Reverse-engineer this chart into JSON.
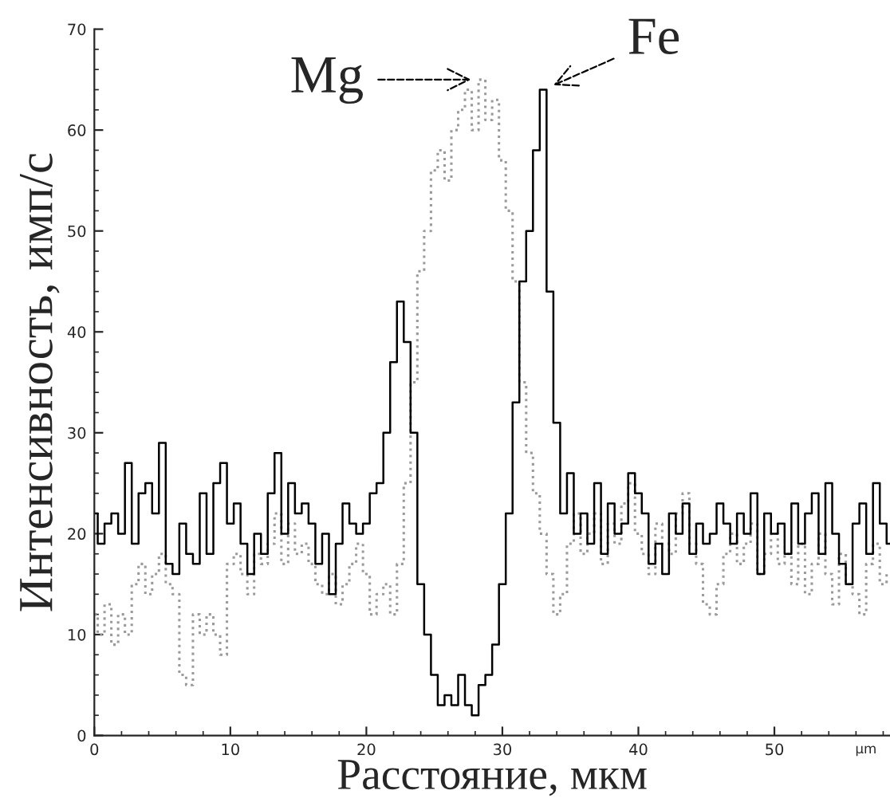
{
  "chart_data": {
    "type": "step",
    "xlabel": "Расстояние, мкм",
    "ylabel": "Интенсивность, имп/с",
    "annotations": [
      "µm"
    ],
    "x": [
      0,
      0.5,
      1,
      1.5,
      2,
      2.5,
      3,
      3.5,
      4,
      4.5,
      5,
      5.5,
      6,
      6.5,
      7,
      7.5,
      8,
      8.5,
      9,
      9.5,
      10,
      10.5,
      11,
      11.5,
      12,
      12.5,
      13,
      13.5,
      14,
      14.5,
      15,
      15.5,
      16,
      16.5,
      17,
      17.5,
      18,
      18.5,
      19,
      19.5,
      20,
      20.5,
      21,
      21.5,
      22,
      22.5,
      23,
      23.5,
      24,
      24.5,
      25,
      25.5,
      26,
      26.5,
      27,
      27.5,
      28,
      28.5,
      29,
      29.5,
      30,
      30.5,
      31,
      31.5,
      32,
      32.5,
      33,
      33.5,
      34,
      34.5,
      35,
      35.5,
      36,
      36.5,
      37,
      37.5,
      38,
      38.5,
      39,
      39.5,
      40,
      40.5,
      41,
      41.5,
      42,
      42.5,
      43,
      43.5,
      44,
      44.5,
      45,
      45.5,
      46,
      46.5,
      47,
      47.5,
      48,
      48.5,
      49,
      49.5,
      50,
      50.5,
      51,
      51.5,
      52,
      52.5,
      53,
      53.5,
      54,
      54.5,
      55,
      55.5,
      56,
      56.5,
      57,
      57.5,
      58,
      58.5
    ],
    "series": [
      {
        "name": "Mg",
        "color": "#9a9a9a",
        "line_style": "dotted",
        "values": [
          12,
          10,
          13,
          9,
          12,
          10,
          15,
          17,
          14,
          16,
          18,
          15,
          14,
          6,
          5,
          12,
          10,
          12,
          10,
          8,
          17,
          18,
          16,
          14,
          18,
          17,
          19,
          22,
          17,
          21,
          18,
          19,
          17,
          15,
          14,
          16,
          13,
          15,
          17,
          19,
          16,
          12,
          14,
          15,
          12,
          17,
          25,
          35,
          46,
          50,
          56,
          58,
          55,
          60,
          62,
          64,
          60,
          65,
          61,
          63,
          57,
          52,
          45,
          35,
          28,
          24,
          20,
          16,
          12,
          14,
          19,
          22,
          18,
          20,
          22,
          17,
          21,
          19,
          23,
          25,
          20,
          18,
          16,
          21,
          19,
          18,
          22,
          24,
          19,
          17,
          13,
          12,
          15,
          18,
          20,
          17,
          19,
          21,
          16,
          18,
          20,
          17,
          18,
          15,
          19,
          14,
          17,
          20,
          16,
          13,
          18,
          15,
          14,
          12,
          17,
          19,
          15,
          16
        ]
      },
      {
        "name": "Fe",
        "color": "#000000",
        "line_style": "solid",
        "values": [
          22,
          19,
          21,
          22,
          20,
          27,
          19,
          24,
          25,
          22,
          29,
          17,
          16,
          21,
          18,
          17,
          24,
          18,
          25,
          27,
          21,
          23,
          19,
          16,
          20,
          18,
          24,
          28,
          20,
          25,
          22,
          23,
          21,
          17,
          20,
          14,
          19,
          23,
          21,
          20,
          21,
          24,
          25,
          30,
          37,
          43,
          39,
          30,
          15,
          10,
          6,
          3,
          4,
          3,
          6,
          3,
          2,
          5,
          6,
          9,
          15,
          22,
          33,
          45,
          50,
          58,
          64,
          44,
          31,
          22,
          26,
          20,
          22,
          19,
          25,
          18,
          23,
          20,
          21,
          26,
          24,
          22,
          17,
          19,
          16,
          22,
          20,
          23,
          18,
          21,
          19,
          20,
          23,
          21,
          19,
          22,
          20,
          24,
          16,
          22,
          20,
          21,
          18,
          23,
          19,
          22,
          24,
          18,
          25,
          20,
          17,
          15,
          21,
          23,
          18,
          25,
          21,
          19
        ]
      }
    ],
    "xlim": [
      0,
      58.5
    ],
    "ylim": [
      0,
      70
    ],
    "xticks": [
      0,
      10,
      20,
      30,
      40,
      50
    ],
    "yticks": [
      0,
      10,
      20,
      30,
      40,
      50,
      60,
      70
    ],
    "grid": false
  }
}
